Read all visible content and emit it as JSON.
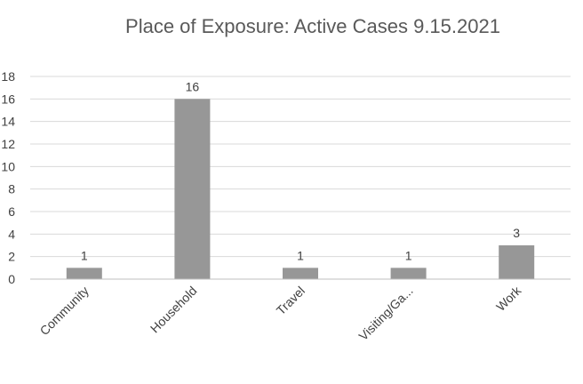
{
  "chart_data": {
    "type": "bar",
    "title": "Place of Exposure: Active Cases 9.15.2021",
    "categories": [
      "Community",
      "Household",
      "Travel",
      "Visiting/Ga...",
      "Work"
    ],
    "values": [
      1,
      16,
      1,
      1,
      3
    ],
    "data_labels": [
      "1",
      "16",
      "1",
      "1",
      "3"
    ],
    "ylim": [
      0,
      18
    ],
    "yticks": [
      0,
      2,
      4,
      6,
      8,
      10,
      12,
      14,
      16,
      18
    ],
    "grid": true,
    "legend": "none",
    "bar_color": "#979797",
    "grid_color": "#d9d9d9",
    "axis_color": "#bfbfbf"
  }
}
